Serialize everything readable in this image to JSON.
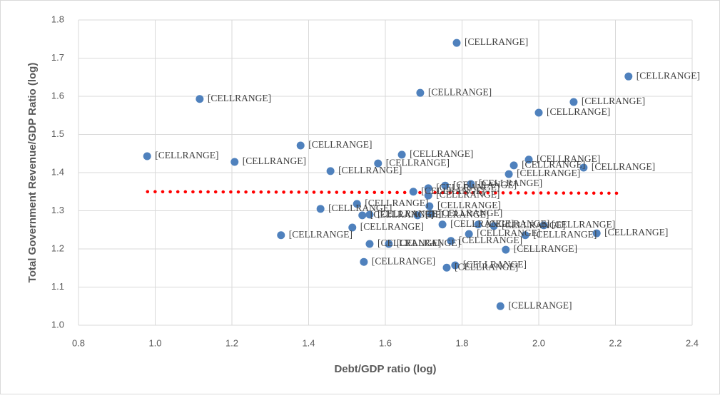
{
  "chart_data": {
    "type": "scatter",
    "x_label": "Debt/GDP ratio (log)",
    "y_label": "Total Government Revenue/GDP Ratio (log)",
    "xlim": [
      0.8,
      2.4
    ],
    "ylim": [
      1.0,
      1.8
    ],
    "xticks": [
      {
        "value": 0.8,
        "label": "0.8"
      },
      {
        "value": 1.0,
        "label": "1.0"
      },
      {
        "value": 1.2,
        "label": "1.2"
      },
      {
        "value": 1.4,
        "label": "1.4"
      },
      {
        "value": 1.6,
        "label": "1.6"
      },
      {
        "value": 1.8,
        "label": "1.8"
      },
      {
        "value": 2.0,
        "label": "2.0"
      },
      {
        "value": 2.2,
        "label": "2.2"
      },
      {
        "value": 2.4,
        "label": "2.4"
      }
    ],
    "yticks": [
      {
        "value": 1.0,
        "label": "1.0"
      },
      {
        "value": 1.1,
        "label": "1.1"
      },
      {
        "value": 1.2,
        "label": "1.2"
      },
      {
        "value": 1.3,
        "label": "1.3"
      },
      {
        "value": 1.4,
        "label": "1.4"
      },
      {
        "value": 1.5,
        "label": "1.5"
      },
      {
        "value": 1.6,
        "label": "1.6"
      },
      {
        "value": 1.7,
        "label": "1.7"
      },
      {
        "value": 1.8,
        "label": "1.8"
      }
    ],
    "grid": true,
    "color": "#4f81bd",
    "x": [
      0.979,
      1.116,
      1.207,
      1.328,
      1.379,
      1.431,
      1.457,
      1.514,
      1.526,
      1.544,
      1.54,
      1.559,
      1.559,
      1.581,
      1.609,
      1.643,
      1.673,
      1.691,
      1.684,
      1.712,
      1.712,
      1.715,
      1.719,
      1.749,
      1.756,
      1.76,
      1.771,
      1.782,
      1.786,
      1.818,
      1.823,
      1.842,
      1.883,
      1.9,
      1.914,
      1.922,
      1.935,
      1.965,
      1.974,
      2.0,
      2.013,
      2.091,
      2.117,
      2.151,
      2.234
    ],
    "values": [
      1.443,
      1.593,
      1.428,
      1.236,
      1.471,
      1.305,
      1.404,
      1.256,
      1.318,
      1.166,
      1.288,
      1.213,
      1.29,
      1.424,
      1.213,
      1.447,
      1.35,
      1.609,
      1.288,
      1.359,
      1.34,
      1.312,
      1.292,
      1.264,
      1.366,
      1.151,
      1.221,
      1.157,
      1.74,
      1.239,
      1.37,
      1.264,
      1.26,
      1.05,
      1.198,
      1.396,
      1.419,
      1.236,
      1.434,
      1.557,
      1.262,
      1.585,
      1.413,
      1.241,
      1.652
    ],
    "point_labels": [
      "[CELLRANGE]",
      "[CELLRANGE]",
      "[CELLRANGE]",
      "[CELLRANGE]",
      "[CELLRANGE]",
      "[CELLRANGE]",
      "[CELLRANGE]",
      "[CELLRANGE]",
      "[CELLRANGE]",
      "[CELLRANGE]",
      "[CELLRANGE]",
      "[CELLRANGE]",
      "[CELLRANGE]",
      "[CELLRANGE]",
      "[CELLRANGE]",
      "[CELLRANGE]",
      "[CELLRANGE]",
      "[CELLRANGE]",
      "[CELLRANGE]",
      "[CELLRANGE]",
      "[CELLRANGE]",
      "[CELLRANGE]",
      "[CELLRANGE]",
      "[CELLRANGE]",
      "[CELLRANGE]",
      "[CELLRANGE]",
      "[CELLRANGE]",
      "[CELLRANGE]",
      "[CELLRANGE]",
      "[CELLRANGE]",
      "[CELLRANGE]",
      "[CELLRANGE]",
      "[CELLRANGE]",
      "[CELLRANGE]",
      "[CELLRANGE]",
      "[CELLRANGE]",
      "[CELLRANGE]",
      "[CELLRANGE]",
      "[CELLRANGE]",
      "[CELLRANGE]",
      "[CELLRANGE]",
      "[CELLRANGE]",
      "[CELLRANGE]",
      "[CELLRANGE]",
      "[CELLRANGE]"
    ],
    "trendline": {
      "x": [
        0.98,
        2.22
      ],
      "values": [
        1.35,
        1.346
      ],
      "color": "#ff0000"
    }
  }
}
